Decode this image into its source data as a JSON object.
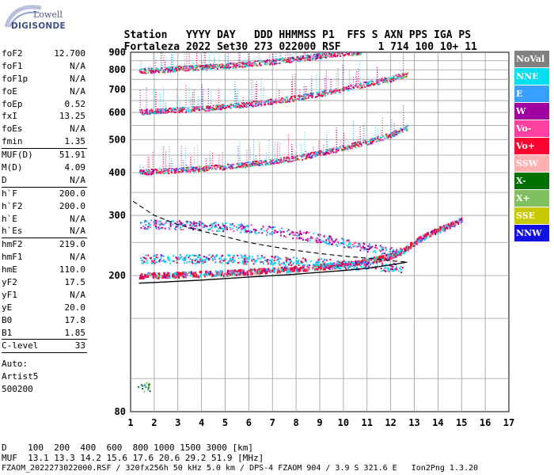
{
  "logo": {
    "line1": "Lowell",
    "line2": "DIGISONDE"
  },
  "header": {
    "keys": [
      "Station",
      "YYYY",
      "DAY",
      "DDD",
      "HHMMSS",
      "P1",
      "FFS",
      "S",
      "AXN",
      "PPS",
      "IGA",
      "PS"
    ],
    "values": [
      "Fortaleza",
      "2022",
      "Set30",
      "273",
      "022000",
      "RSF",
      "",
      "1",
      "714",
      "100",
      "10+",
      "11"
    ]
  },
  "params": {
    "group1": [
      {
        "k": "foF2",
        "v": "12.700"
      },
      {
        "k": "foF1",
        "v": "N/A"
      },
      {
        "k": "foF1p",
        "v": "N/A"
      },
      {
        "k": "foE",
        "v": "N/A"
      },
      {
        "k": "foEp",
        "v": "0.52"
      },
      {
        "k": "fxI",
        "v": "13.25"
      },
      {
        "k": "foEs",
        "v": "N/A"
      },
      {
        "k": "fmin",
        "v": "1.35"
      }
    ],
    "group2": [
      {
        "k": "MUF(D)",
        "v": "51.91"
      },
      {
        "k": "M(D)",
        "v": "4.09"
      },
      {
        "k": "D",
        "v": "N/A"
      }
    ],
    "group3": [
      {
        "k": "h`F",
        "v": "200.0"
      },
      {
        "k": "h`F2",
        "v": "200.0"
      },
      {
        "k": "h`E",
        "v": "N/A"
      },
      {
        "k": "h`Es",
        "v": "N/A"
      }
    ],
    "group4": [
      {
        "k": "hmF2",
        "v": "219.0"
      },
      {
        "k": "hmF1",
        "v": "N/A"
      },
      {
        "k": "hmE",
        "v": "110.0"
      },
      {
        "k": "yF2",
        "v": "17.5"
      },
      {
        "k": "yF1",
        "v": "N/A"
      },
      {
        "k": "yE",
        "v": "20.0"
      },
      {
        "k": "B0",
        "v": "17.8"
      },
      {
        "k": "B1",
        "v": "1.85"
      }
    ],
    "group5": [
      {
        "k": "C-level",
        "v": "33"
      }
    ],
    "auto": [
      "Auto:",
      "Artist5",
      "500200"
    ]
  },
  "legend": [
    {
      "label": "NoVal",
      "color": "#808080"
    },
    {
      "label": "NNE",
      "color": "#00e0f0"
    },
    {
      "label": "E",
      "color": "#3aa0ff"
    },
    {
      "label": "W",
      "color": "#a000a0"
    },
    {
      "label": "Vo-",
      "color": "#ff40a0"
    },
    {
      "label": "Vo+",
      "color": "#ff0030"
    },
    {
      "label": "SSW",
      "color": "#ffb0b0"
    },
    {
      "label": "X-",
      "color": "#007000"
    },
    {
      "label": "X+",
      "color": "#80c060"
    },
    {
      "label": "SSE",
      "color": "#c8c800"
    },
    {
      "label": "NNW",
      "color": "#1010e0"
    }
  ],
  "footer": {
    "d_label": "D",
    "d_values": [
      "100",
      "200",
      "400",
      "600",
      "800",
      "1000",
      "1500",
      "3000",
      "[km]"
    ],
    "muf_label": "MUF",
    "muf_values": [
      "13.1",
      "13.3",
      "14.2",
      "15.6",
      "17.6",
      "20.6",
      "29.2",
      "51.9",
      "[MHz]"
    ],
    "info": "FZAOM_2022273022000.RSF / 320fx256h 50 kHz 5.0 km / DPS-4 FZAOM 904 / 3.9 S 321.6 E   Ion2Png 1.3.20"
  },
  "chart_data": {
    "type": "scatter",
    "xlim": [
      1,
      17
    ],
    "ylim": [
      80,
      900
    ],
    "x_ticks": [
      1,
      2,
      3,
      4,
      5,
      6,
      7,
      8,
      9,
      10,
      11,
      12,
      13,
      14,
      15,
      16,
      17
    ],
    "y_ticks": [
      80,
      200,
      300,
      400,
      500,
      600,
      700,
      800,
      900
    ],
    "y_scale": "log",
    "grid": true,
    "traces": [
      {
        "name": "trace-1",
        "x": [
          1.35,
          2,
          3,
          4,
          5,
          6,
          7,
          8,
          9,
          10,
          11,
          12,
          12.5,
          13,
          13.5,
          14,
          14.5,
          15
        ],
        "y": [
          200,
          200,
          201,
          202,
          203,
          205,
          207,
          209,
          212,
          215,
          220,
          228,
          235,
          250,
          262,
          272,
          280,
          292
        ]
      },
      {
        "name": "trace-2",
        "x": [
          1.35,
          2,
          3,
          4,
          5,
          6,
          7,
          8,
          9,
          10,
          11,
          12,
          12.7
        ],
        "y": [
          400,
          402,
          405,
          410,
          415,
          422,
          430,
          440,
          455,
          472,
          490,
          515,
          540
        ]
      },
      {
        "name": "trace-3",
        "x": [
          1.35,
          2,
          3,
          4,
          5,
          6,
          7,
          8,
          9,
          10,
          11,
          12,
          12.7
        ],
        "y": [
          600,
          603,
          608,
          614,
          622,
          632,
          645,
          660,
          678,
          700,
          725,
          750,
          775
        ]
      },
      {
        "name": "trace-4",
        "x": [
          1.35,
          2,
          3,
          4,
          5,
          6,
          7,
          8,
          9,
          10,
          10.8
        ],
        "y": [
          790,
          795,
          803,
          810,
          818,
          830,
          843,
          858,
          875,
          893,
          900
        ]
      },
      {
        "name": "trace-5",
        "x": [
          1.4,
          2,
          3,
          4,
          5,
          6,
          7,
          8,
          9,
          10,
          11,
          12,
          12.5
        ],
        "y": [
          222,
          222,
          222,
          222,
          222,
          221,
          220,
          218,
          216,
          214,
          212,
          210,
          209
        ]
      },
      {
        "name": "trace-6",
        "x": [
          1.4,
          2,
          3,
          4,
          5,
          6,
          7,
          8,
          9,
          10,
          11,
          12,
          12.5
        ],
        "y": [
          280,
          280,
          279,
          278,
          275,
          272,
          268,
          262,
          255,
          247,
          240,
          234,
          232
        ]
      }
    ],
    "profile": {
      "x": [
        1.35,
        2,
        4,
        6,
        8,
        10,
        11,
        12,
        12.7
      ],
      "y": [
        190,
        191,
        194,
        198,
        202,
        207,
        210,
        215,
        219
      ]
    },
    "dashed": {
      "x": [
        1.1,
        2,
        3,
        4,
        5,
        6,
        7,
        8,
        9,
        10,
        11,
        12,
        12.7
      ],
      "y": [
        330,
        300,
        282,
        270,
        260,
        250,
        243,
        237,
        232,
        228,
        225,
        221,
        219
      ]
    }
  }
}
